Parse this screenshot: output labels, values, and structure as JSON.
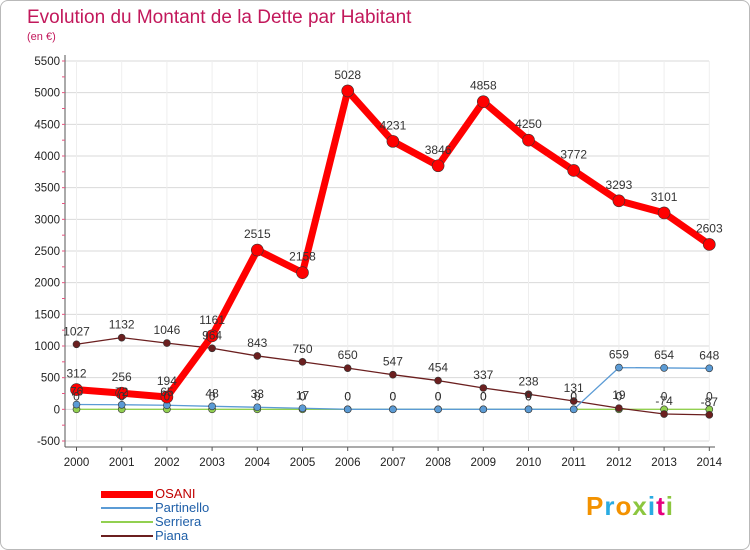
{
  "header": {
    "title": "Evolution du Montant de la Dette par Habitant",
    "subtitle": "(en €)"
  },
  "logo": {
    "text": "Proxiti",
    "colors": [
      "#f39200",
      "#29abe2",
      "#f39200",
      "#8cc63f",
      "#29abe2",
      "#e6007e",
      "#8cc63f"
    ]
  },
  "colors": {
    "OSANI": "#ff0000",
    "Partinello": "#5b9bd5",
    "Serriera": "#92d050",
    "Piana": "#6b1f1f",
    "title": "#c2185b",
    "grid": "#d9d9d9"
  },
  "chart_data": {
    "type": "line",
    "title": "Evolution du Montant de la Dette par Habitant",
    "subtitle": "(en €)",
    "x": [
      2000,
      2001,
      2002,
      2003,
      2004,
      2005,
      2006,
      2007,
      2008,
      2009,
      2010,
      2011,
      2012,
      2013,
      2014
    ],
    "ylim": [
      -500,
      5500
    ],
    "yticks": [
      -500,
      0,
      500,
      1000,
      1500,
      2000,
      2500,
      3000,
      3500,
      4000,
      4500,
      5000,
      5500
    ],
    "grid": true,
    "legend": "bottom-left",
    "series": [
      {
        "name": "OSANI",
        "values": [
          312,
          256,
          194,
          1161,
          2515,
          2158,
          5028,
          4231,
          3846,
          4858,
          4250,
          3772,
          3293,
          3101,
          2603
        ],
        "labels": [
          "312",
          "256",
          "194",
          "1161",
          "2515",
          "2158",
          "5028",
          "4231",
          "3846",
          "4858",
          "4250",
          "3772",
          "3293",
          "3101",
          "2603"
        ]
      },
      {
        "name": "Partinello",
        "values": [
          76,
          72,
          65,
          48,
          33,
          17,
          0,
          0,
          0,
          0,
          0,
          0,
          659,
          654,
          648
        ],
        "labels": [
          "76",
          "72",
          "65",
          "48",
          "33",
          "17",
          "0",
          "0",
          "0",
          "0",
          "0",
          "0",
          "659",
          "654",
          "648"
        ]
      },
      {
        "name": "Serriera",
        "values": [
          0,
          0,
          0,
          0,
          0,
          0,
          0,
          0,
          0,
          0,
          0,
          0,
          0,
          0,
          0
        ],
        "labels": [
          "0",
          "0",
          "0",
          "0",
          "0",
          "0",
          "0",
          "0",
          "0",
          "0",
          "0",
          "0",
          "0",
          "0",
          "0"
        ]
      },
      {
        "name": "Piana",
        "values": [
          1027,
          1132,
          1046,
          964,
          843,
          750,
          650,
          547,
          454,
          337,
          238,
          131,
          19,
          -74,
          -87
        ],
        "labels": [
          "1027",
          "1132",
          "1046",
          "964",
          "843",
          "750",
          "650",
          "547",
          "454",
          "337",
          "238",
          "131",
          "19",
          "-74",
          "-87"
        ]
      }
    ]
  }
}
